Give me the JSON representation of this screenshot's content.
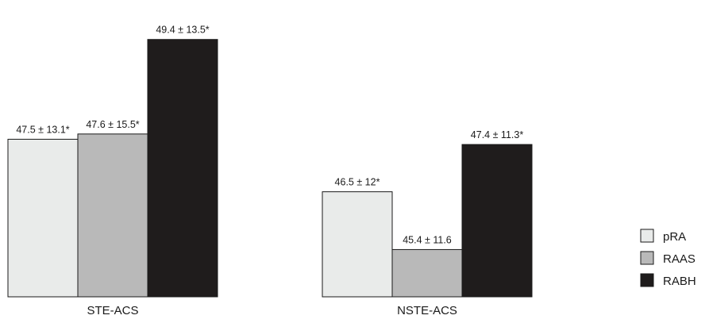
{
  "chart_data": {
    "type": "bar",
    "title": "",
    "xlabel": "",
    "ylabel": "",
    "ylim": [
      44.5,
      50
    ],
    "categories": [
      "STE-ACS",
      "NSTE-ACS"
    ],
    "series": [
      {
        "name": "pRA",
        "color": "#e9ebea",
        "values": [
          47.5,
          46.5
        ],
        "labels": [
          "47.5 ± 13.1*",
          "46.5 ± 12*"
        ]
      },
      {
        "name": "RAAS",
        "color": "#b9b9b9",
        "values": [
          47.6,
          45.4
        ],
        "labels": [
          "47.6 ± 15.5*",
          "45.4 ± 11.6"
        ]
      },
      {
        "name": "RABH",
        "color": "#1f1c1c",
        "values": [
          49.4,
          47.4
        ],
        "labels": [
          "49.4 ± 13.5*",
          "47.4 ± 11.3*"
        ]
      }
    ],
    "legend_position": "right",
    "grid": false
  }
}
